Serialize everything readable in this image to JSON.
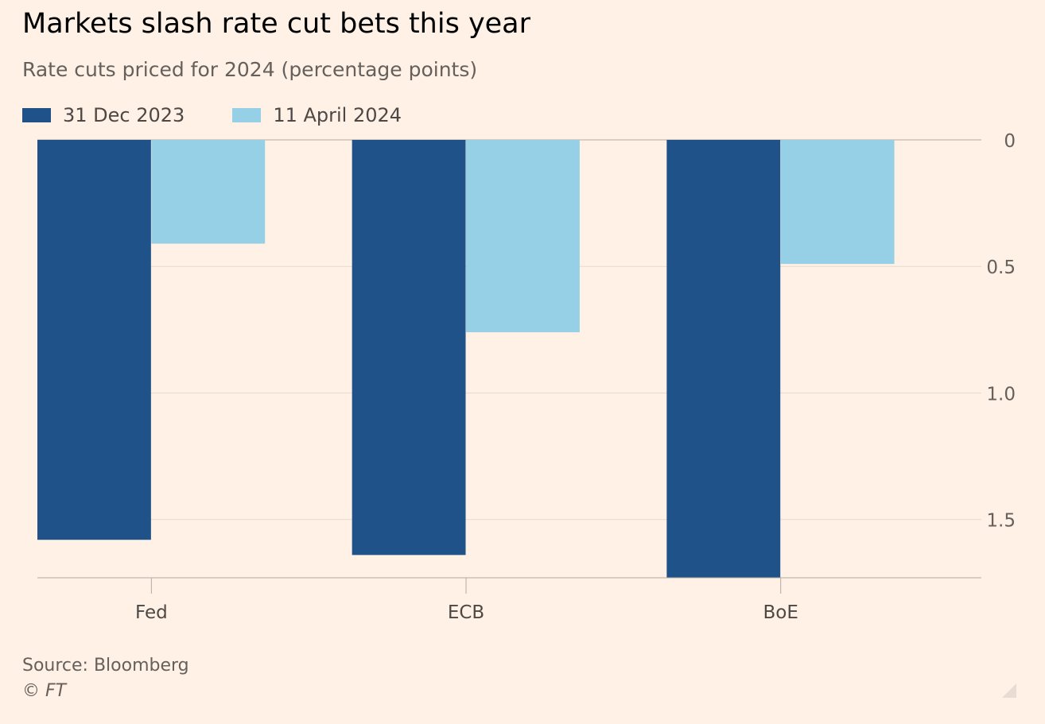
{
  "title": "Markets slash rate cut bets this year",
  "subtitle": "Rate cuts priced for 2024 (percentage points)",
  "footer": {
    "source": "Source: Bloomberg",
    "copyright": "© FT"
  },
  "colors": {
    "background": "#fff1e5",
    "series_dark": "#1f5289",
    "series_light": "#95d0e6",
    "gridline": "#e6d9ce",
    "axis": "#b3aaa3"
  },
  "chart_data": {
    "type": "bar",
    "categories": [
      "Fed",
      "ECB",
      "BoE"
    ],
    "series": [
      {
        "name": "31 Dec 2023",
        "color": "#1f5289",
        "values": [
          1.58,
          1.64,
          1.73
        ]
      },
      {
        "name": "11 April 2024",
        "color": "#95d0e6",
        "values": [
          0.41,
          0.76,
          0.49
        ]
      }
    ],
    "ylim": [
      0,
      1.73
    ],
    "y_inverted": true,
    "y_axis_side": "right",
    "y_ticks": [
      "0",
      "0.5",
      "1.0",
      "1.5"
    ],
    "xlabel": "",
    "ylabel": "",
    "grid": true,
    "legend_position": "top-left"
  }
}
